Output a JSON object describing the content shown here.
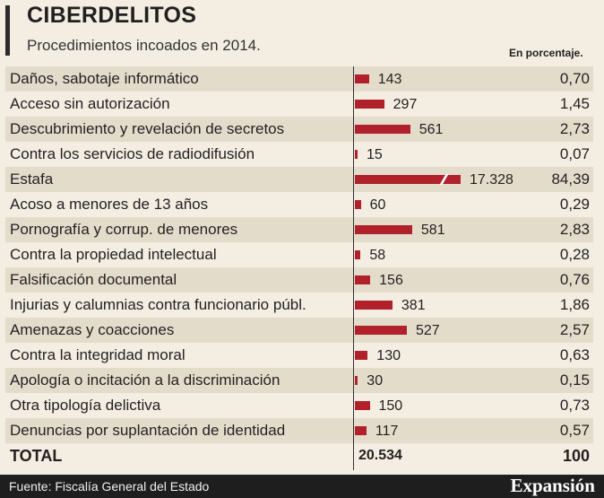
{
  "title": "CIBERDELITOS",
  "subtitle": "Procedimientos incoados en 2014.",
  "pct_header": "En porcentaje.",
  "chart_data": {
    "type": "bar",
    "orientation": "horizontal",
    "title": "CIBERDELITOS",
    "subtitle": "Procedimientos incoados en 2014.",
    "categories": [
      "Daños, sabotaje informático",
      "Acceso sin autorización",
      "Descubrimiento y revelación de secretos",
      "Contra los servicios de radiodifusión",
      "Estafa",
      "Acoso a menores de 13 años",
      "Pornografía y corrup. de menores",
      "Contra la propiedad intelectual",
      "Falsificación documental",
      "Injurias y calumnias contra funcionario públ.",
      "Amenazas y coacciones",
      "Contra la integridad moral",
      "Apología o incitación a la discriminación",
      "Otra tipología delictiva",
      "Denuncias por suplantación de identidad"
    ],
    "values": [
      143,
      297,
      561,
      15,
      17328,
      60,
      581,
      58,
      156,
      381,
      527,
      130,
      30,
      150,
      117
    ],
    "value_labels": [
      "143",
      "297",
      "561",
      "15",
      "17.328",
      "60",
      "581",
      "58",
      "156",
      "381",
      "527",
      "130",
      "30",
      "150",
      "117"
    ],
    "percentages": [
      "0,70",
      "1,45",
      "2,73",
      "0,07",
      "84,39",
      "0,29",
      "2,83",
      "0,28",
      "0,76",
      "1,86",
      "2,57",
      "0,63",
      "0,15",
      "0,73",
      "0,57"
    ],
    "broken_bar_index": 4,
    "total_label": "TOTAL",
    "total_value": "20.534",
    "total_pct": "100",
    "xlabel": "",
    "ylabel": "",
    "xlim": [
      0,
      700
    ]
  },
  "source": "Fuente: Fiscalía General del Estado",
  "logo": "Expansión"
}
